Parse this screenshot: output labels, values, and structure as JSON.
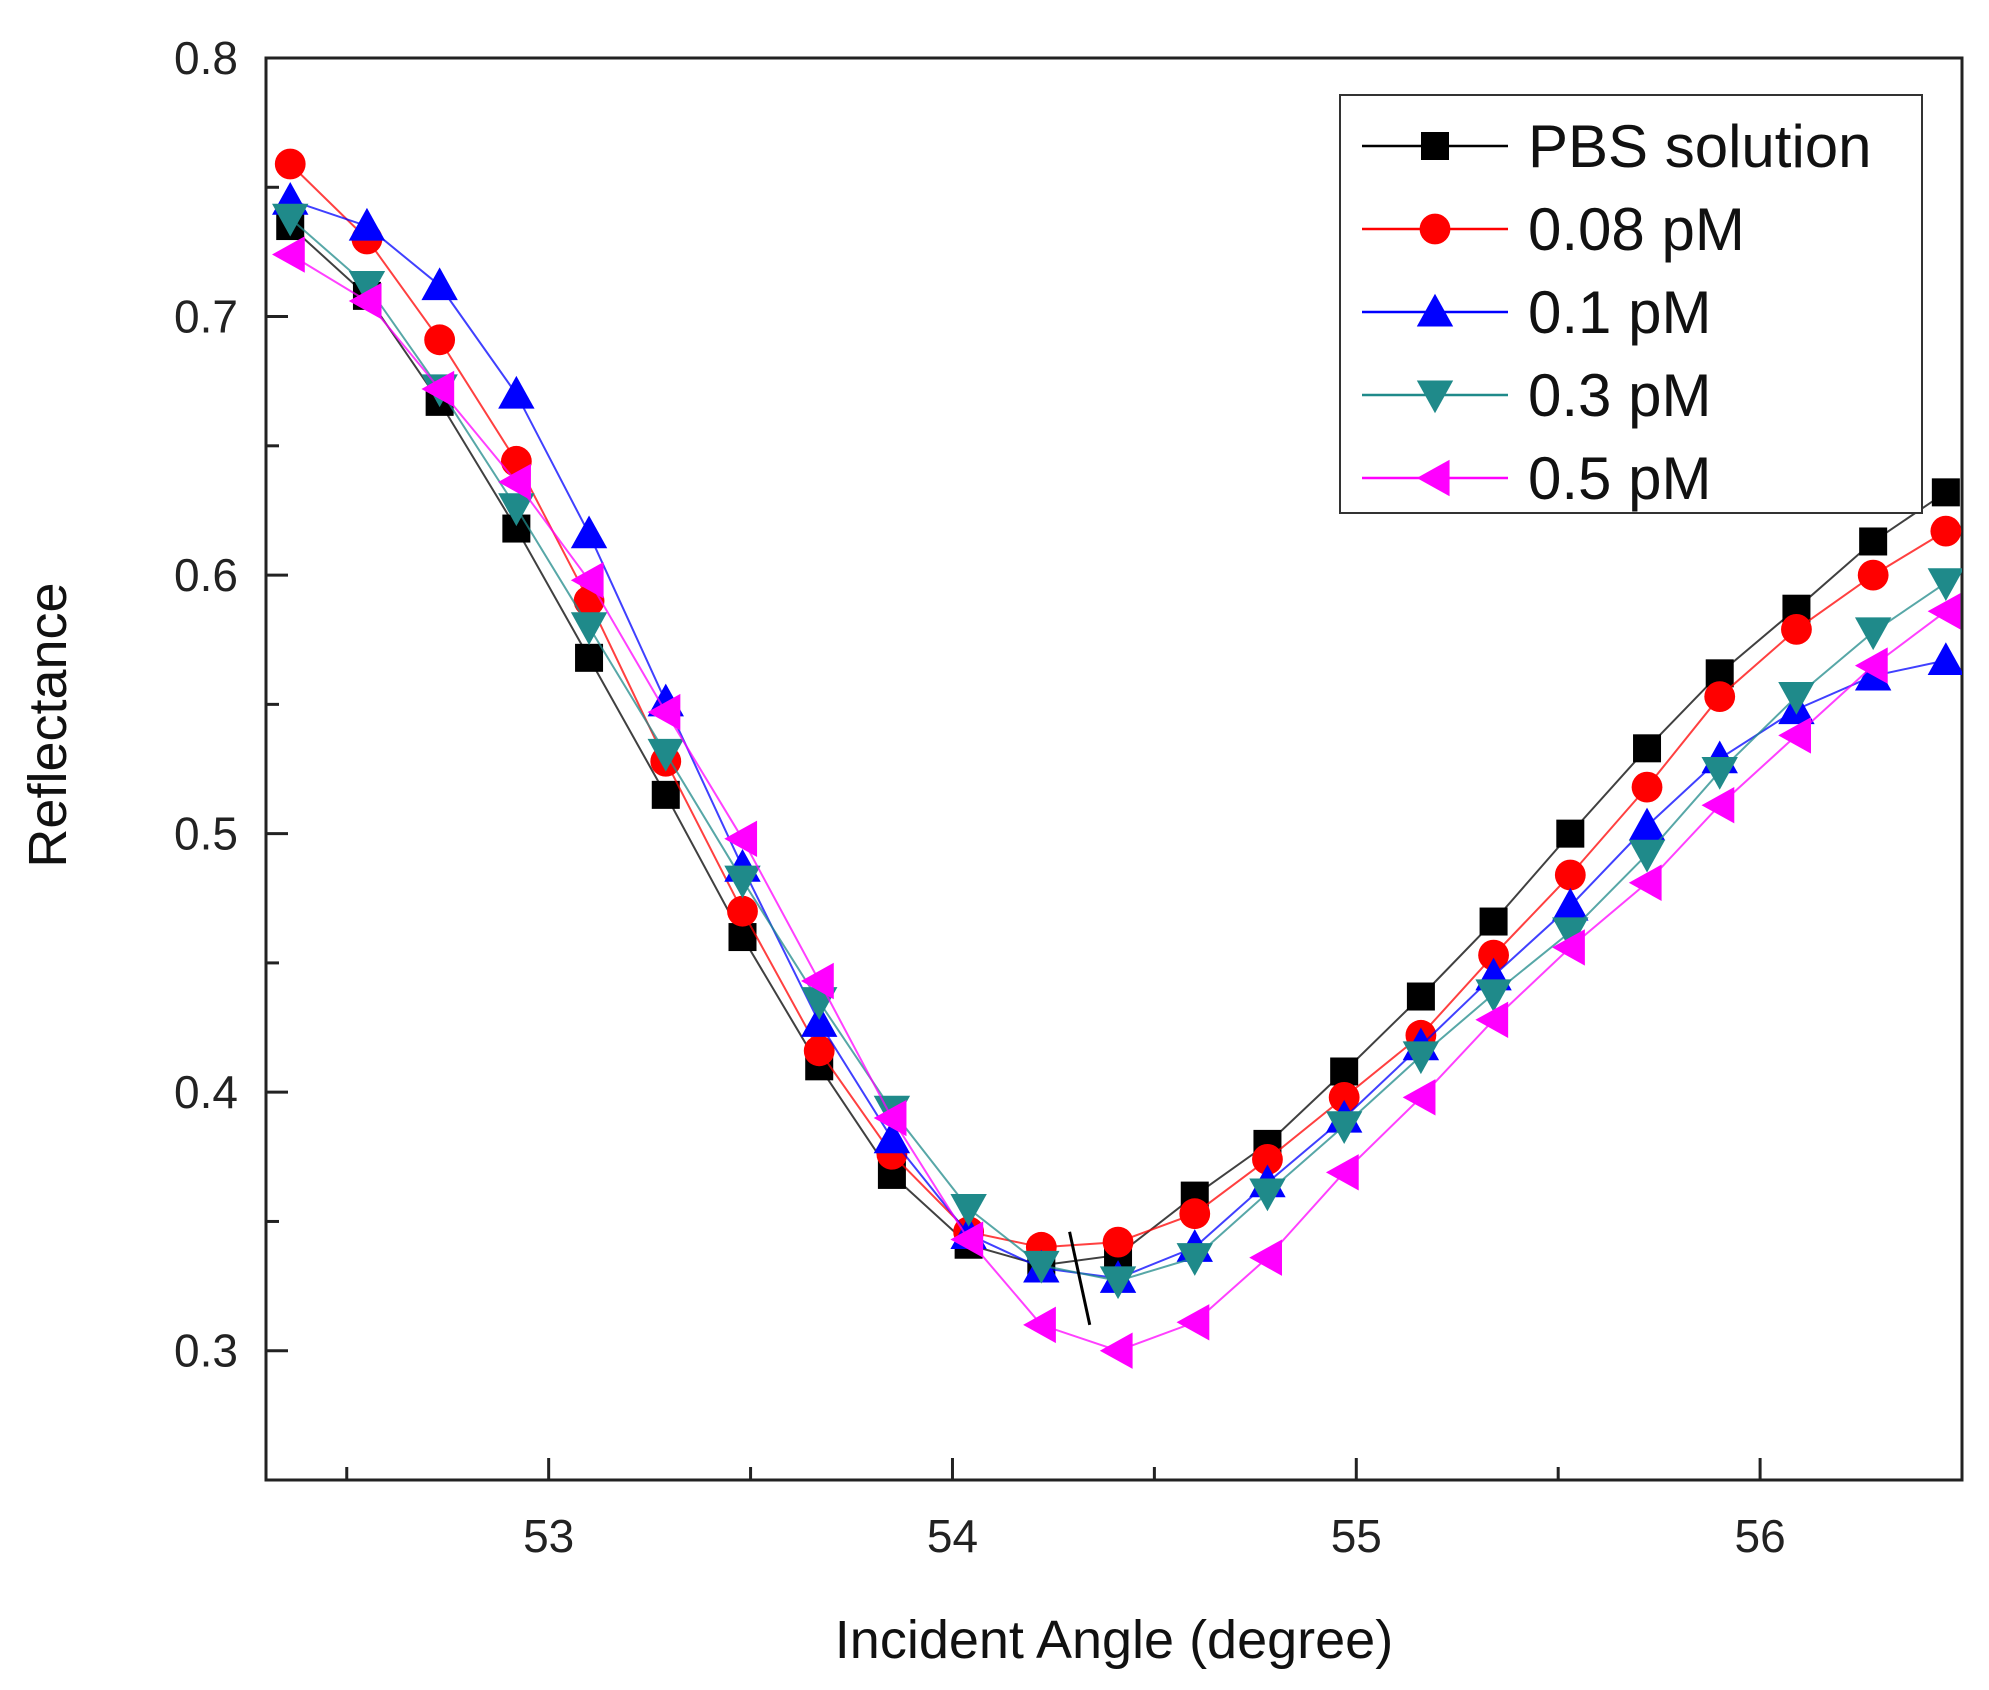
{
  "chart_data": {
    "type": "line",
    "title": "",
    "xlabel": "Incident Angle (degree)",
    "ylabel": "Reflectance",
    "xlim": [
      52.3,
      56.5
    ],
    "ylim": [
      0.25,
      0.8
    ],
    "xticks": [
      53,
      54,
      55,
      56
    ],
    "xtick_labels": [
      "53",
      "54",
      "55",
      "56"
    ],
    "yticks": [
      0.3,
      0.4,
      0.5,
      0.6,
      0.7,
      0.8
    ],
    "ytick_labels": [
      "0.3",
      "0.4",
      "0.5",
      "0.6",
      "0.7",
      "0.8"
    ],
    "grid": false,
    "legend_position": "top-right",
    "annotation": "short black line segment marking the resonance-minimum shift near 54.3 degree",
    "x": [
      52.36,
      52.55,
      52.73,
      52.92,
      53.1,
      53.29,
      53.48,
      53.67,
      53.85,
      54.04,
      54.22,
      54.41,
      54.6,
      54.78,
      54.97,
      55.16,
      55.34,
      55.53,
      55.72,
      55.9,
      56.09,
      56.28,
      56.46
    ],
    "series": [
      {
        "name": "PBS solution",
        "marker": "square",
        "color": "#000000",
        "values": [
          0.735,
          0.708,
          0.667,
          0.618,
          0.568,
          0.515,
          0.46,
          0.41,
          0.368,
          0.341,
          0.333,
          0.337,
          0.36,
          0.38,
          0.408,
          0.437,
          0.466,
          0.5,
          0.533,
          0.562,
          0.587,
          0.613,
          0.632
        ]
      },
      {
        "name": "0.08 pM",
        "marker": "circle",
        "color": "#ff0000",
        "values": [
          0.759,
          0.73,
          0.691,
          0.644,
          0.59,
          0.528,
          0.47,
          0.416,
          0.376,
          0.346,
          0.34,
          0.342,
          0.353,
          0.374,
          0.398,
          0.422,
          0.453,
          0.484,
          0.518,
          0.553,
          0.579,
          0.6,
          0.617
        ]
      },
      {
        "name": "0.1 pM",
        "marker": "triangle-up",
        "color": "#0000ff",
        "values": [
          0.745,
          0.735,
          0.712,
          0.67,
          0.616,
          0.551,
          0.487,
          0.427,
          0.382,
          0.345,
          0.332,
          0.328,
          0.34,
          0.365,
          0.39,
          0.418,
          0.445,
          0.472,
          0.503,
          0.529,
          0.548,
          0.561,
          0.567
        ]
      },
      {
        "name": "0.3 pM",
        "marker": "triangle-down",
        "color": "#1f8a8a",
        "values": [
          0.738,
          0.712,
          0.672,
          0.626,
          0.58,
          0.531,
          0.482,
          0.435,
          0.393,
          0.355,
          0.333,
          0.327,
          0.336,
          0.361,
          0.387,
          0.414,
          0.438,
          0.462,
          0.492,
          0.524,
          0.553,
          0.578,
          0.597
        ]
      },
      {
        "name": "0.5 pM",
        "marker": "triangle-left",
        "color": "#ff00ff",
        "values": [
          0.724,
          0.706,
          0.672,
          0.636,
          0.598,
          0.547,
          0.498,
          0.443,
          0.39,
          0.343,
          0.31,
          0.3,
          0.311,
          0.336,
          0.369,
          0.398,
          0.428,
          0.456,
          0.481,
          0.511,
          0.538,
          0.565,
          0.586
        ]
      }
    ]
  }
}
